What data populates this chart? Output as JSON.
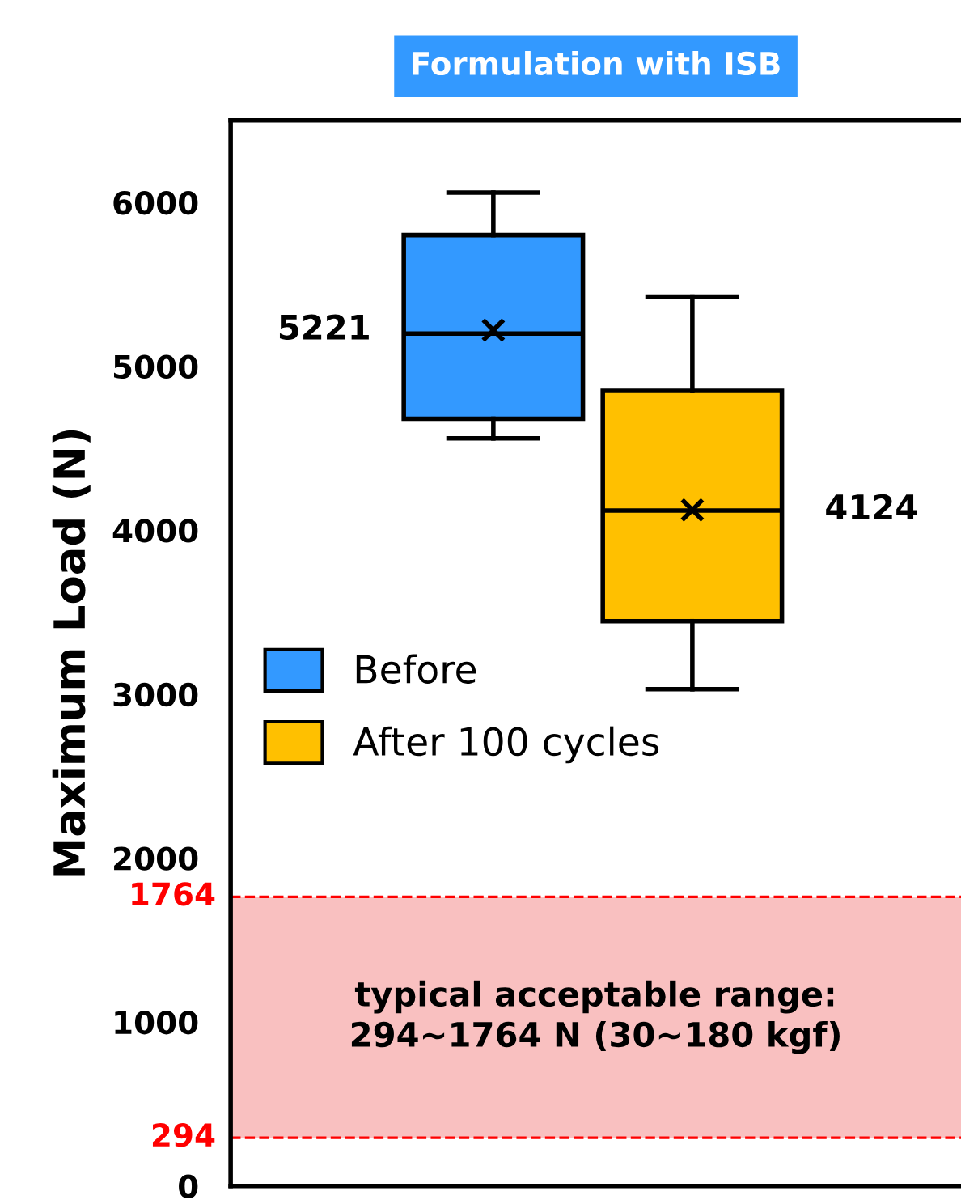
{
  "chart_data": {
    "type": "box",
    "title": "Formulation with ISB",
    "ylabel": "Maximum Load (N)",
    "categories": [
      null,
      null
    ],
    "series": [
      {
        "name": "Before",
        "color": "#3399ff",
        "boxes": [
          {
            "low": 4560,
            "q1": 4680,
            "median": 5200,
            "q3": 5800,
            "high": 6060,
            "mean": 5221
          },
          null
        ]
      },
      {
        "name": "After 100 cycles",
        "color": "#ffc000",
        "boxes": [
          null,
          {
            "low": 3030,
            "q1": 3445,
            "median": 4120,
            "q3": 4850,
            "high": 5425,
            "mean": 4124
          }
        ]
      }
    ],
    "annotations": [
      "5221",
      "4124",
      "typical acceptable range:\n294~1764 N (30~180 kgf)"
    ],
    "ylim": [
      0,
      6500
    ],
    "yticks": [
      0,
      1000,
      2000,
      3000,
      4000,
      5000,
      6000
    ],
    "ref_lines": [
      {
        "axis": "y",
        "value": 1764,
        "label": "1764",
        "color": "#ff0000",
        "line_style": "dashed"
      },
      {
        "axis": "y",
        "value": 294,
        "label": "294",
        "color": "#ff0000",
        "line_style": "dashed"
      }
    ],
    "bands": [
      {
        "axis": "y",
        "from": 294,
        "to": 1764,
        "color": "#f9c0c0"
      }
    ],
    "legend": "center left",
    "grid": false,
    "tick_labels": "y"
  }
}
